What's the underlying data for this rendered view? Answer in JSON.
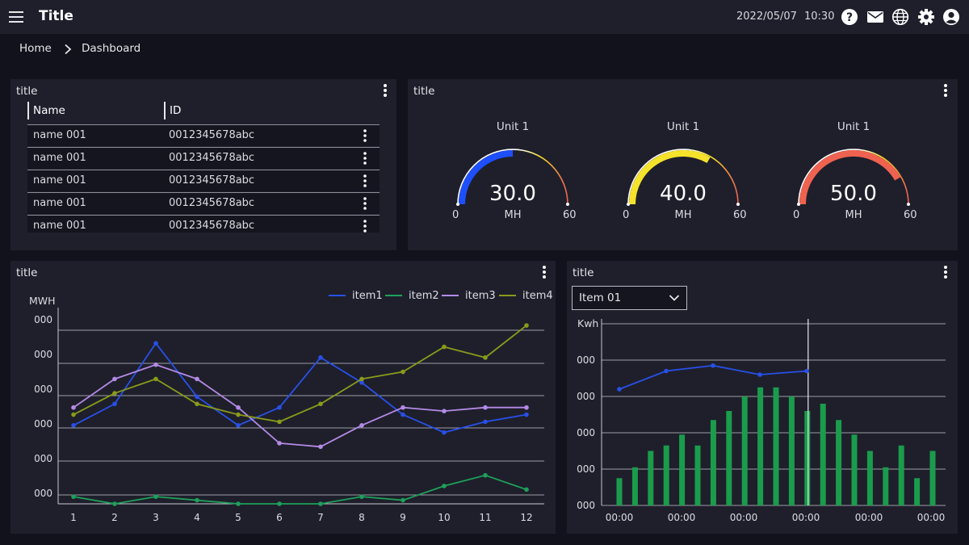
{
  "header": {
    "title": "Title",
    "date": "2022/05/07",
    "time": "10:30",
    "icons": [
      "menu-icon",
      "help-icon",
      "mail-icon",
      "globe-icon",
      "gear-icon",
      "account-icon"
    ]
  },
  "breadcrumb": {
    "home": "Home",
    "current": "Dashboard"
  },
  "table_panel": {
    "title": "title",
    "columns": [
      "Name",
      "ID"
    ],
    "rows": [
      {
        "name": "name 001",
        "id": "0012345678abc"
      },
      {
        "name": "name 001",
        "id": "0012345678abc"
      },
      {
        "name": "name 001",
        "id": "0012345678abc"
      },
      {
        "name": "name 001",
        "id": "0012345678abc"
      },
      {
        "name": "name 001",
        "id": "0012345678abc"
      }
    ]
  },
  "gauge_panel": {
    "title": "title",
    "gauges": [
      {
        "unit": "Unit 1",
        "value": 30.0,
        "display": "30.0",
        "uom": "MH",
        "min_label": "0",
        "max_label": "60",
        "color": "#1e4fff"
      },
      {
        "unit": "Unit 1",
        "value": 40.0,
        "display": "40.0",
        "uom": "MH",
        "min_label": "0",
        "max_label": "60",
        "color": "#f5e22a"
      },
      {
        "unit": "Unit 1",
        "value": 50.0,
        "display": "50.0",
        "uom": "MH",
        "min_label": "0",
        "max_label": "60",
        "color": "#f06250"
      }
    ],
    "scale": {
      "min": 0,
      "max": 60
    }
  },
  "line_panel": {
    "title": "title",
    "chart_data": {
      "type": "line",
      "ylabel": "MWH",
      "ytick_labels": [
        "000",
        "000",
        "000",
        "000",
        "000",
        "000"
      ],
      "x": [
        1,
        2,
        3,
        4,
        5,
        6,
        7,
        8,
        9,
        10,
        11,
        12
      ],
      "ylim": [
        0,
        5.5
      ],
      "grid": true,
      "legend": "top-right",
      "series": [
        {
          "name": "item1",
          "color": "#2850e8",
          "values": [
            2.2,
            2.8,
            4.5,
            3.0,
            2.2,
            2.7,
            4.1,
            3.4,
            2.5,
            2.0,
            2.3,
            2.5
          ]
        },
        {
          "name": "item2",
          "color": "#1ea05a",
          "values": [
            0.2,
            0.0,
            0.2,
            0.1,
            0.0,
            0.0,
            0.0,
            0.2,
            0.1,
            0.5,
            0.8,
            0.4
          ]
        },
        {
          "name": "item3",
          "color": "#b48ae6",
          "values": [
            2.7,
            3.5,
            3.9,
            3.5,
            2.7,
            1.7,
            1.6,
            2.2,
            2.7,
            2.6,
            2.7,
            2.7
          ]
        },
        {
          "name": "item4",
          "color": "#8a9a1a",
          "values": [
            2.5,
            3.1,
            3.5,
            2.8,
            2.5,
            2.3,
            2.8,
            3.5,
            3.7,
            4.4,
            4.1,
            5.0
          ]
        }
      ]
    }
  },
  "bar_panel": {
    "title": "title",
    "select": {
      "value": "Item 01"
    },
    "chart_data": {
      "type": "bar",
      "ylabel": "Kwh",
      "ytick_labels": [
        "000",
        "000",
        "000",
        "000",
        "000"
      ],
      "xtick_labels": [
        "00:00",
        "00:00",
        "00:00",
        "00:00",
        "00:00",
        "00:00"
      ],
      "ylim": [
        0,
        5
      ],
      "grid": true,
      "bar_color": "#1a9c4c",
      "bars": [
        0.75,
        1.05,
        1.5,
        1.65,
        1.95,
        1.65,
        2.35,
        2.6,
        3.0,
        3.25,
        3.25,
        3.0,
        2.6,
        2.8,
        2.35,
        1.95,
        1.5,
        1.05,
        1.65,
        0.75,
        1.5
      ],
      "line": {
        "color": "#2850e8",
        "values": [
          3.2,
          3.7,
          3.85,
          3.6,
          3.7
        ]
      },
      "cursor_index": 12
    }
  }
}
